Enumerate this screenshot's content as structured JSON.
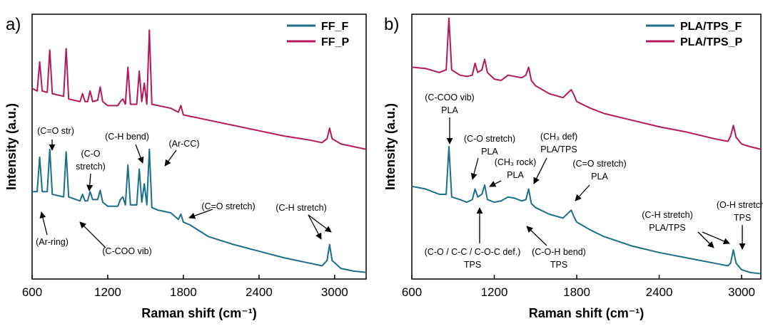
{
  "chart_data": [
    {
      "type": "line",
      "panel_label": "a)",
      "x_label": "Raman shift (cm⁻¹)",
      "y_label": "Intensity (a.u.)",
      "xlim": [
        600,
        3250
      ],
      "ylim": [
        0,
        100
      ],
      "xticks": [
        600,
        1200,
        1800,
        2400,
        3000
      ],
      "legend": "upper right",
      "x": [
        600,
        640,
        660,
        680,
        720,
        740,
        760,
        850,
        870,
        890,
        980,
        1000,
        1020,
        1040,
        1060,
        1080,
        1120,
        1140,
        1160,
        1200,
        1280,
        1300,
        1320,
        1340,
        1360,
        1380,
        1430,
        1450,
        1470,
        1490,
        1510,
        1530,
        1550,
        1600,
        1650,
        1700,
        1760,
        1780,
        1800,
        1850,
        2000,
        2200,
        2400,
        2600,
        2800,
        2900,
        2940,
        2960,
        2980,
        3050,
        3150,
        3250
      ],
      "series": [
        {
          "name": "FF_F",
          "color": "#1b6f8a",
          "values": [
            33,
            33,
            46,
            33,
            33,
            49,
            32,
            31,
            48,
            31,
            29.5,
            32,
            29.5,
            29.5,
            33,
            30,
            30,
            33.5,
            29,
            27.5,
            27.5,
            30,
            31,
            28,
            43,
            28,
            28,
            41.5,
            29,
            36,
            28,
            49,
            27,
            26,
            25.5,
            25,
            22.5,
            24.5,
            21.5,
            20.5,
            16,
            13,
            10.5,
            8,
            6,
            5,
            7,
            13,
            7,
            4,
            3,
            2.5
          ]
        },
        {
          "name": "FF_P",
          "color": "#b3195c",
          "values": [
            72,
            71,
            82,
            71,
            70.5,
            86.5,
            70,
            69,
            87,
            68,
            67,
            70,
            67,
            67,
            71,
            67,
            67.5,
            72.5,
            67,
            65.5,
            65.5,
            67,
            68,
            66,
            80,
            66,
            66,
            78.5,
            67,
            74,
            66,
            94,
            66,
            65.5,
            65,
            64.5,
            63,
            65.5,
            62,
            61.5,
            60,
            58,
            56,
            54,
            52.5,
            51.5,
            53,
            57,
            53,
            51,
            50,
            49
          ]
        }
      ],
      "annotations": [
        [
          "(C=O str)"
        ],
        [
          "(C-H bend)"
        ],
        [
          "(C-O",
          "stretch)"
        ],
        [
          "(Ar-CC)"
        ],
        [
          "(C=O stretch)"
        ],
        [
          "(C-H stretch)"
        ],
        [
          "(Ar-ring)"
        ],
        [
          "(C-COO vib)"
        ]
      ]
    },
    {
      "type": "line",
      "panel_label": "b)",
      "x_label": "Raman shift (cm⁻¹)",
      "y_label": "Intensity (a.u.)",
      "xlim": [
        600,
        3140
      ],
      "ylim": [
        0,
        100
      ],
      "xticks": [
        600,
        1200,
        1800,
        2400,
        3000
      ],
      "legend": "upper right",
      "x": [
        600,
        700,
        800,
        850,
        870,
        890,
        950,
        1000,
        1040,
        1060,
        1080,
        1110,
        1130,
        1150,
        1200,
        1250,
        1300,
        1350,
        1400,
        1430,
        1450,
        1470,
        1500,
        1600,
        1700,
        1760,
        1780,
        1800,
        1900,
        2000,
        2200,
        2400,
        2600,
        2800,
        2900,
        2920,
        2940,
        2960,
        3000,
        3060,
        3140
      ],
      "series": [
        {
          "name": "PLA/TPS_F",
          "color": "#1b6f8a",
          "values": [
            35,
            34,
            32,
            32,
            50,
            31,
            30,
            29,
            30,
            34,
            31,
            32,
            35.5,
            30,
            29,
            29.5,
            31,
            30.5,
            29.5,
            30,
            34,
            28.5,
            27,
            24.5,
            23,
            26,
            23.5,
            21.5,
            18.5,
            16,
            12.5,
            10,
            8,
            6,
            5,
            6,
            11,
            6,
            3.5,
            2.5,
            2
          ]
        },
        {
          "name": "PLA/TPS_P",
          "color": "#b3195c",
          "values": [
            80,
            79.5,
            78,
            79,
            98.5,
            79,
            77,
            76.5,
            77,
            81.5,
            78,
            79,
            83,
            78,
            75.5,
            75,
            77,
            76.5,
            76,
            77,
            80,
            75,
            73,
            70,
            68.5,
            71.5,
            69.5,
            67,
            64.5,
            62.5,
            60,
            57.5,
            55.5,
            53,
            52,
            54,
            58,
            53.5,
            51,
            50,
            49
          ]
        }
      ],
      "annotations": [
        [
          "(C-COO vib)",
          "PLA"
        ],
        [
          "(C-O stretch)",
          "PLA"
        ],
        [
          "(CH₃ rock)",
          "PLA"
        ],
        [
          "(CH₃ def)",
          "PLA/TPS"
        ],
        [
          "(C=O stretch)",
          "PLA"
        ],
        [
          "(C-H stretch)",
          "PLA/TPS"
        ],
        [
          "(O-H stretch)",
          "TPS"
        ],
        [
          "(C-O / C-C / C-O-C def.)",
          "TPS"
        ],
        [
          "(C-O-H bend)",
          "TPS"
        ]
      ]
    }
  ]
}
